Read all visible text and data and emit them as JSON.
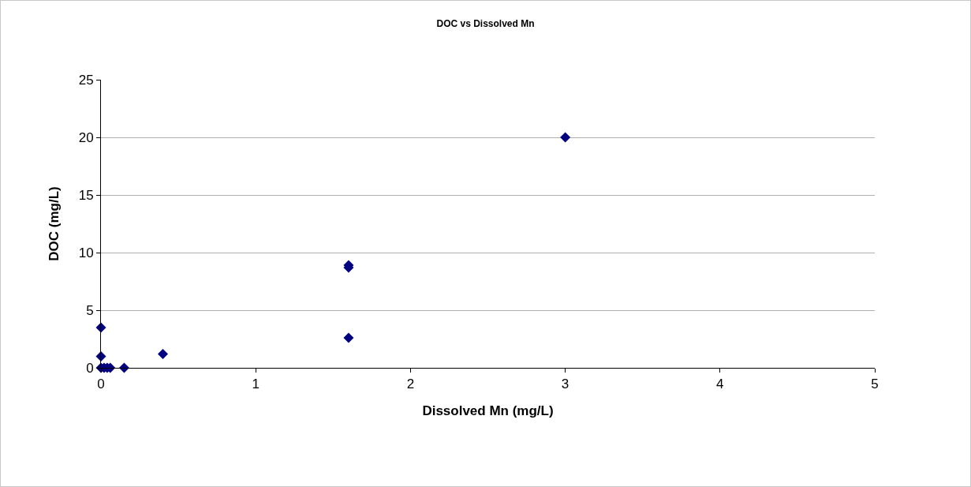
{
  "chart_data": {
    "type": "scatter",
    "title": "DOC vs Dissolved Mn",
    "xlabel": "Dissolved Mn (mg/L)",
    "ylabel": "DOC (mg/L)",
    "x": [
      0,
      0,
      0,
      0.02,
      0.04,
      0.06,
      0.15,
      0.4,
      1.6,
      1.6,
      1.6,
      3
    ],
    "values": [
      0,
      1,
      3.5,
      0,
      0,
      0,
      0,
      1.2,
      2.6,
      8.7,
      8.9,
      20
    ],
    "color": "#000080",
    "marker": "diamond",
    "xlim": [
      0,
      5
    ],
    "xticks": [
      0,
      1,
      2,
      3,
      4,
      5
    ],
    "ylim": [
      0,
      25
    ],
    "yticks": [
      0,
      5,
      10,
      15,
      20,
      25
    ],
    "grid": "y",
    "legend": false
  }
}
